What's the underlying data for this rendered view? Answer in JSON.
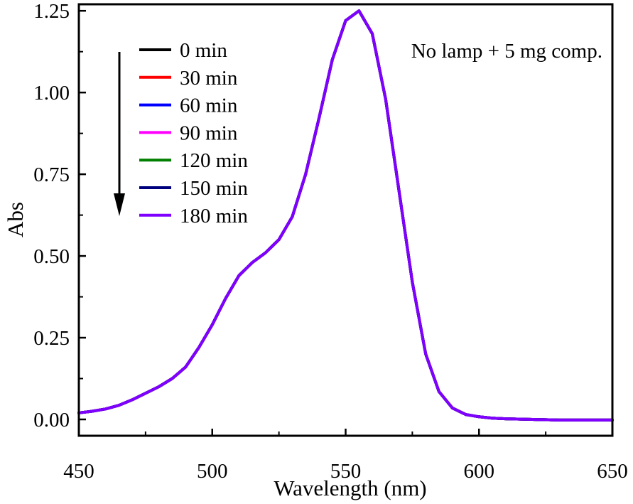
{
  "chart_data": {
    "type": "line",
    "xlabel": "Wavelength (nm)",
    "ylabel": "Abs",
    "xlim": [
      450,
      650
    ],
    "ylim": [
      -0.05,
      1.27
    ],
    "xticks": [
      450,
      500,
      550,
      600,
      650
    ],
    "xtick_labels": [
      "450",
      "500",
      "550",
      "600",
      "650"
    ],
    "yticks": [
      0.0,
      0.25,
      0.5,
      0.75,
      1.0,
      1.25
    ],
    "ytick_labels": [
      "0.00",
      "0.25",
      "0.50",
      "0.75",
      "1.00",
      "1.25"
    ],
    "grid": false,
    "legend_position": "top-left",
    "annotation": "No lamp + 5 mg comp.",
    "arrow_direction": "down",
    "x": [
      450,
      455,
      460,
      465,
      470,
      475,
      480,
      485,
      490,
      495,
      500,
      505,
      510,
      515,
      520,
      525,
      530,
      535,
      540,
      545,
      550,
      555,
      560,
      565,
      570,
      575,
      580,
      585,
      590,
      595,
      600,
      605,
      610,
      620,
      630,
      640,
      650
    ],
    "series": [
      {
        "name": "0 min",
        "color": "#000000",
        "values": [
          0.02,
          0.025,
          0.032,
          0.043,
          0.06,
          0.08,
          0.1,
          0.125,
          0.16,
          0.22,
          0.29,
          0.37,
          0.44,
          0.48,
          0.51,
          0.55,
          0.62,
          0.75,
          0.92,
          1.1,
          1.22,
          1.25,
          1.18,
          0.98,
          0.7,
          0.42,
          0.2,
          0.085,
          0.035,
          0.015,
          0.008,
          0.004,
          0.002,
          0.0,
          -0.002,
          -0.002,
          -0.002
        ]
      },
      {
        "name": "30 min",
        "color": "#ff0000",
        "values": [
          0.02,
          0.025,
          0.032,
          0.043,
          0.06,
          0.08,
          0.1,
          0.125,
          0.16,
          0.22,
          0.29,
          0.37,
          0.44,
          0.48,
          0.51,
          0.55,
          0.62,
          0.75,
          0.92,
          1.1,
          1.22,
          1.25,
          1.18,
          0.98,
          0.7,
          0.42,
          0.2,
          0.085,
          0.035,
          0.015,
          0.008,
          0.004,
          0.002,
          0.0,
          -0.002,
          -0.002,
          -0.002
        ]
      },
      {
        "name": "60 min",
        "color": "#0000ff",
        "values": [
          0.02,
          0.025,
          0.032,
          0.043,
          0.06,
          0.08,
          0.1,
          0.125,
          0.16,
          0.22,
          0.29,
          0.37,
          0.44,
          0.48,
          0.51,
          0.55,
          0.62,
          0.75,
          0.92,
          1.1,
          1.22,
          1.25,
          1.18,
          0.98,
          0.7,
          0.42,
          0.2,
          0.085,
          0.035,
          0.015,
          0.008,
          0.004,
          0.002,
          0.0,
          -0.002,
          -0.002,
          -0.002
        ]
      },
      {
        "name": "90 min",
        "color": "#ff00ff",
        "values": [
          0.02,
          0.025,
          0.032,
          0.043,
          0.06,
          0.08,
          0.1,
          0.125,
          0.16,
          0.22,
          0.29,
          0.37,
          0.44,
          0.48,
          0.51,
          0.55,
          0.62,
          0.75,
          0.92,
          1.1,
          1.22,
          1.25,
          1.18,
          0.98,
          0.7,
          0.42,
          0.2,
          0.085,
          0.035,
          0.015,
          0.008,
          0.004,
          0.002,
          0.0,
          -0.002,
          -0.002,
          -0.002
        ]
      },
      {
        "name": "120 min",
        "color": "#007f00",
        "values": [
          0.02,
          0.025,
          0.032,
          0.043,
          0.06,
          0.08,
          0.1,
          0.125,
          0.16,
          0.22,
          0.29,
          0.37,
          0.44,
          0.48,
          0.51,
          0.55,
          0.62,
          0.75,
          0.92,
          1.1,
          1.22,
          1.25,
          1.18,
          0.98,
          0.7,
          0.42,
          0.2,
          0.085,
          0.035,
          0.015,
          0.008,
          0.004,
          0.002,
          0.0,
          -0.002,
          -0.002,
          -0.002
        ]
      },
      {
        "name": "150 min",
        "color": "#00007f",
        "values": [
          0.02,
          0.025,
          0.032,
          0.043,
          0.06,
          0.08,
          0.1,
          0.125,
          0.16,
          0.22,
          0.29,
          0.37,
          0.44,
          0.48,
          0.51,
          0.55,
          0.62,
          0.75,
          0.92,
          1.1,
          1.22,
          1.25,
          1.18,
          0.98,
          0.7,
          0.42,
          0.2,
          0.085,
          0.035,
          0.015,
          0.008,
          0.004,
          0.002,
          0.0,
          -0.002,
          -0.002,
          -0.002
        ]
      },
      {
        "name": "180 min",
        "color": "#7f00ff",
        "values": [
          0.02,
          0.025,
          0.032,
          0.043,
          0.06,
          0.08,
          0.1,
          0.125,
          0.16,
          0.22,
          0.29,
          0.37,
          0.44,
          0.48,
          0.51,
          0.55,
          0.62,
          0.75,
          0.92,
          1.1,
          1.22,
          1.25,
          1.18,
          0.98,
          0.7,
          0.42,
          0.2,
          0.085,
          0.035,
          0.015,
          0.008,
          0.004,
          0.002,
          0.0,
          -0.002,
          -0.002,
          -0.002
        ]
      }
    ]
  }
}
